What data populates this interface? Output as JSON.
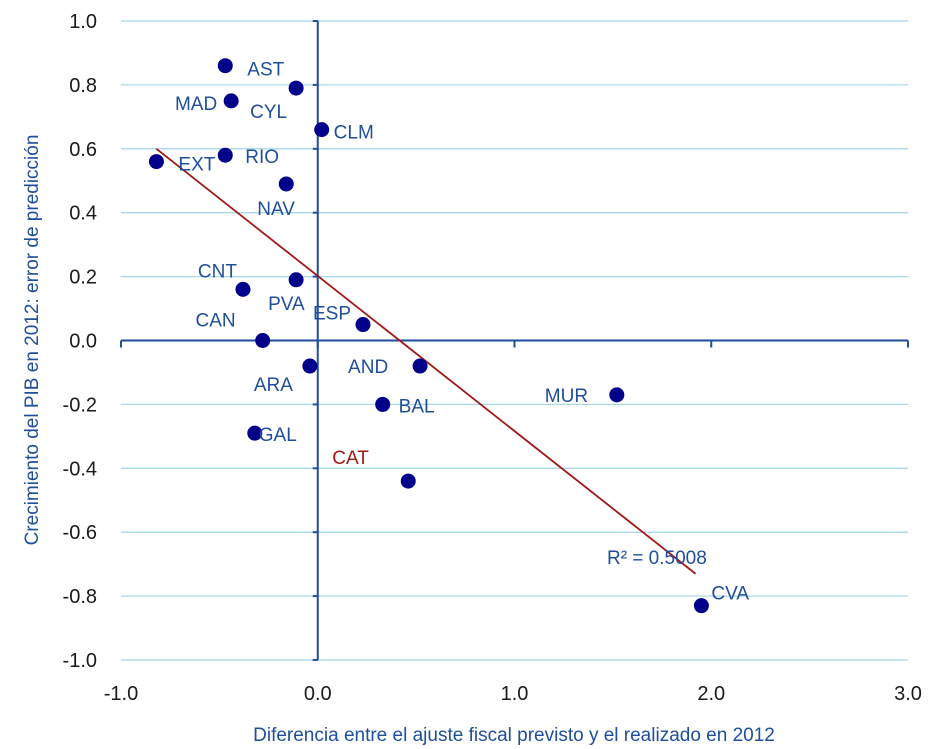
{
  "chart_data": {
    "type": "scatter",
    "xlabel": "Diferencia entre el ajuste fiscal previsto y el realizado en 2012",
    "ylabel": "Crecimiento del PIB en 2012: error de predicción",
    "xlim": [
      -1.0,
      3.0
    ],
    "ylim": [
      -1.0,
      1.0
    ],
    "x_ticks": [
      "-1.0",
      "0.0",
      "1.0",
      "2.0",
      "3.0"
    ],
    "y_ticks": [
      "1.0",
      "0.8",
      "0.6",
      "0.4",
      "0.2",
      "0.0",
      "-0.2",
      "-0.4",
      "-0.6",
      "-0.8",
      "-1.0"
    ],
    "grid": "horizontal",
    "point_color": "#00008b",
    "trendline_color": "#a01818",
    "highlight_color": "#a01818",
    "points": [
      {
        "label": "AST",
        "x": -0.47,
        "y": 0.86
      },
      {
        "label": "MAD",
        "x": -0.44,
        "y": 0.75
      },
      {
        "label": "CYL",
        "x": -0.11,
        "y": 0.79
      },
      {
        "label": "CLM",
        "x": 0.02,
        "y": 0.66
      },
      {
        "label": "EXT",
        "x": -0.82,
        "y": 0.56
      },
      {
        "label": "RIO",
        "x": -0.47,
        "y": 0.58
      },
      {
        "label": "NAV",
        "x": -0.16,
        "y": 0.49
      },
      {
        "label": "CNT",
        "x": -0.38,
        "y": 0.16
      },
      {
        "label": "PVA",
        "x": -0.11,
        "y": 0.19
      },
      {
        "label": "ESP",
        "x": 0.23,
        "y": 0.05
      },
      {
        "label": "CAN",
        "x": -0.28,
        "y": 0.0
      },
      {
        "label": "ARA",
        "x": -0.04,
        "y": -0.08
      },
      {
        "label": "AND",
        "x": 0.52,
        "y": -0.08
      },
      {
        "label": "BAL",
        "x": 0.33,
        "y": -0.2
      },
      {
        "label": "MUR",
        "x": 1.52,
        "y": -0.17
      },
      {
        "label": "GAL",
        "x": -0.32,
        "y": -0.29
      },
      {
        "label": "CAT",
        "x": 0.46,
        "y": -0.44,
        "highlight": true
      },
      {
        "label": "CVA",
        "x": 1.95,
        "y": -0.83
      }
    ],
    "trendline": {
      "x": [
        -0.82,
        1.92
      ],
      "y": [
        0.6,
        -0.73
      ]
    },
    "annotations": [
      {
        "text": "R² = 0.5008",
        "x": 1.47,
        "y": -0.7
      }
    ]
  }
}
